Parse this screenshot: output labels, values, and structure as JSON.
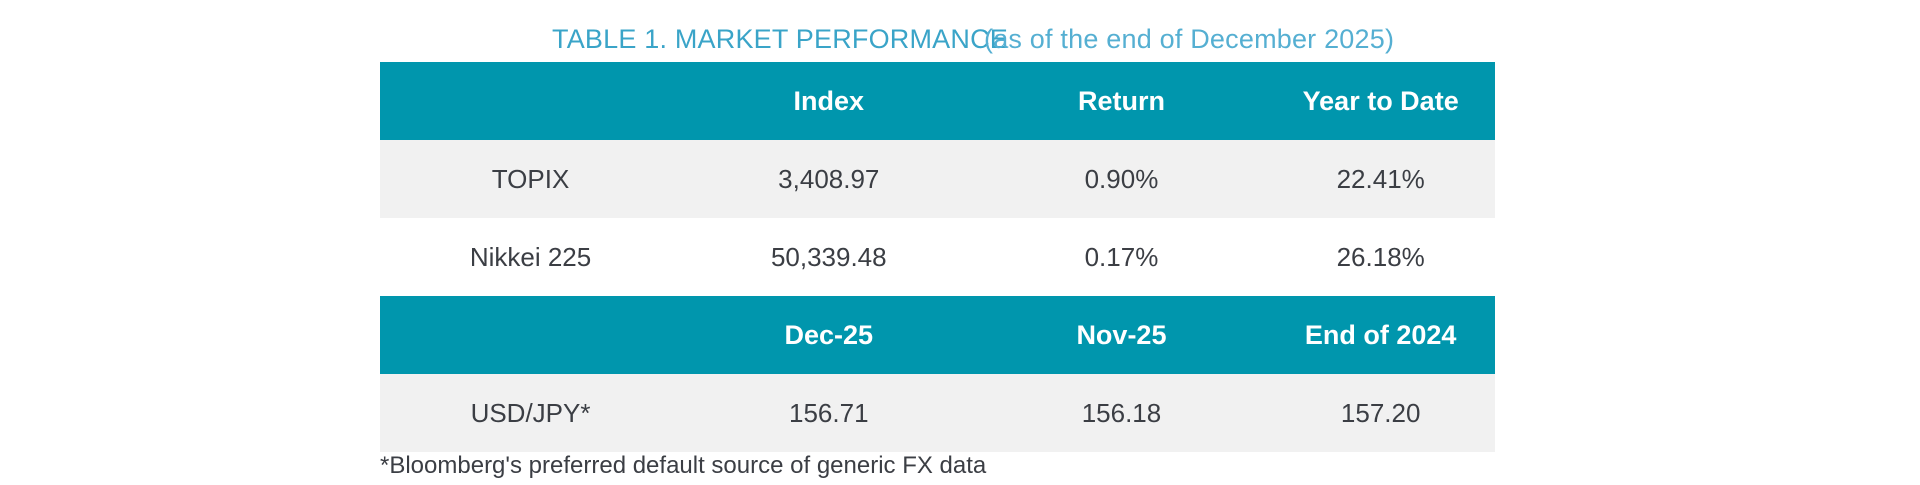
{
  "title": {
    "text": "TABLE 1. MARKET PERFORMANCE",
    "suffix": "(as of the end of December 2025)"
  },
  "colors": {
    "header_bg": "#0096AD",
    "stripe_row_bg": "#F1F1F1",
    "title_text": "#3AA4C8",
    "subtitle_text": "#55AFD2",
    "header_text": "#FFFFFF",
    "body_text": "#3B3E44"
  },
  "index_table": {
    "columns": [
      "",
      "Index",
      "Return",
      "Year to Date"
    ],
    "rows": [
      {
        "label": "TOPIX",
        "index": "3,408.97",
        "return": "0.90%",
        "ytd": "22.41%"
      },
      {
        "label": "Nikkei 225",
        "index": "50,339.48",
        "return": "0.17%",
        "ytd": "26.18%"
      }
    ]
  },
  "fx_table": {
    "columns": [
      "",
      "Dec-25",
      "Nov-25",
      "End of 2024"
    ],
    "rows": [
      {
        "label": "USD/JPY*",
        "dec_25": "156.71",
        "nov_25": "156.18",
        "end_of_2024": "157.20"
      }
    ]
  },
  "footnote": "*Bloomberg's preferred default source of generic FX data"
}
